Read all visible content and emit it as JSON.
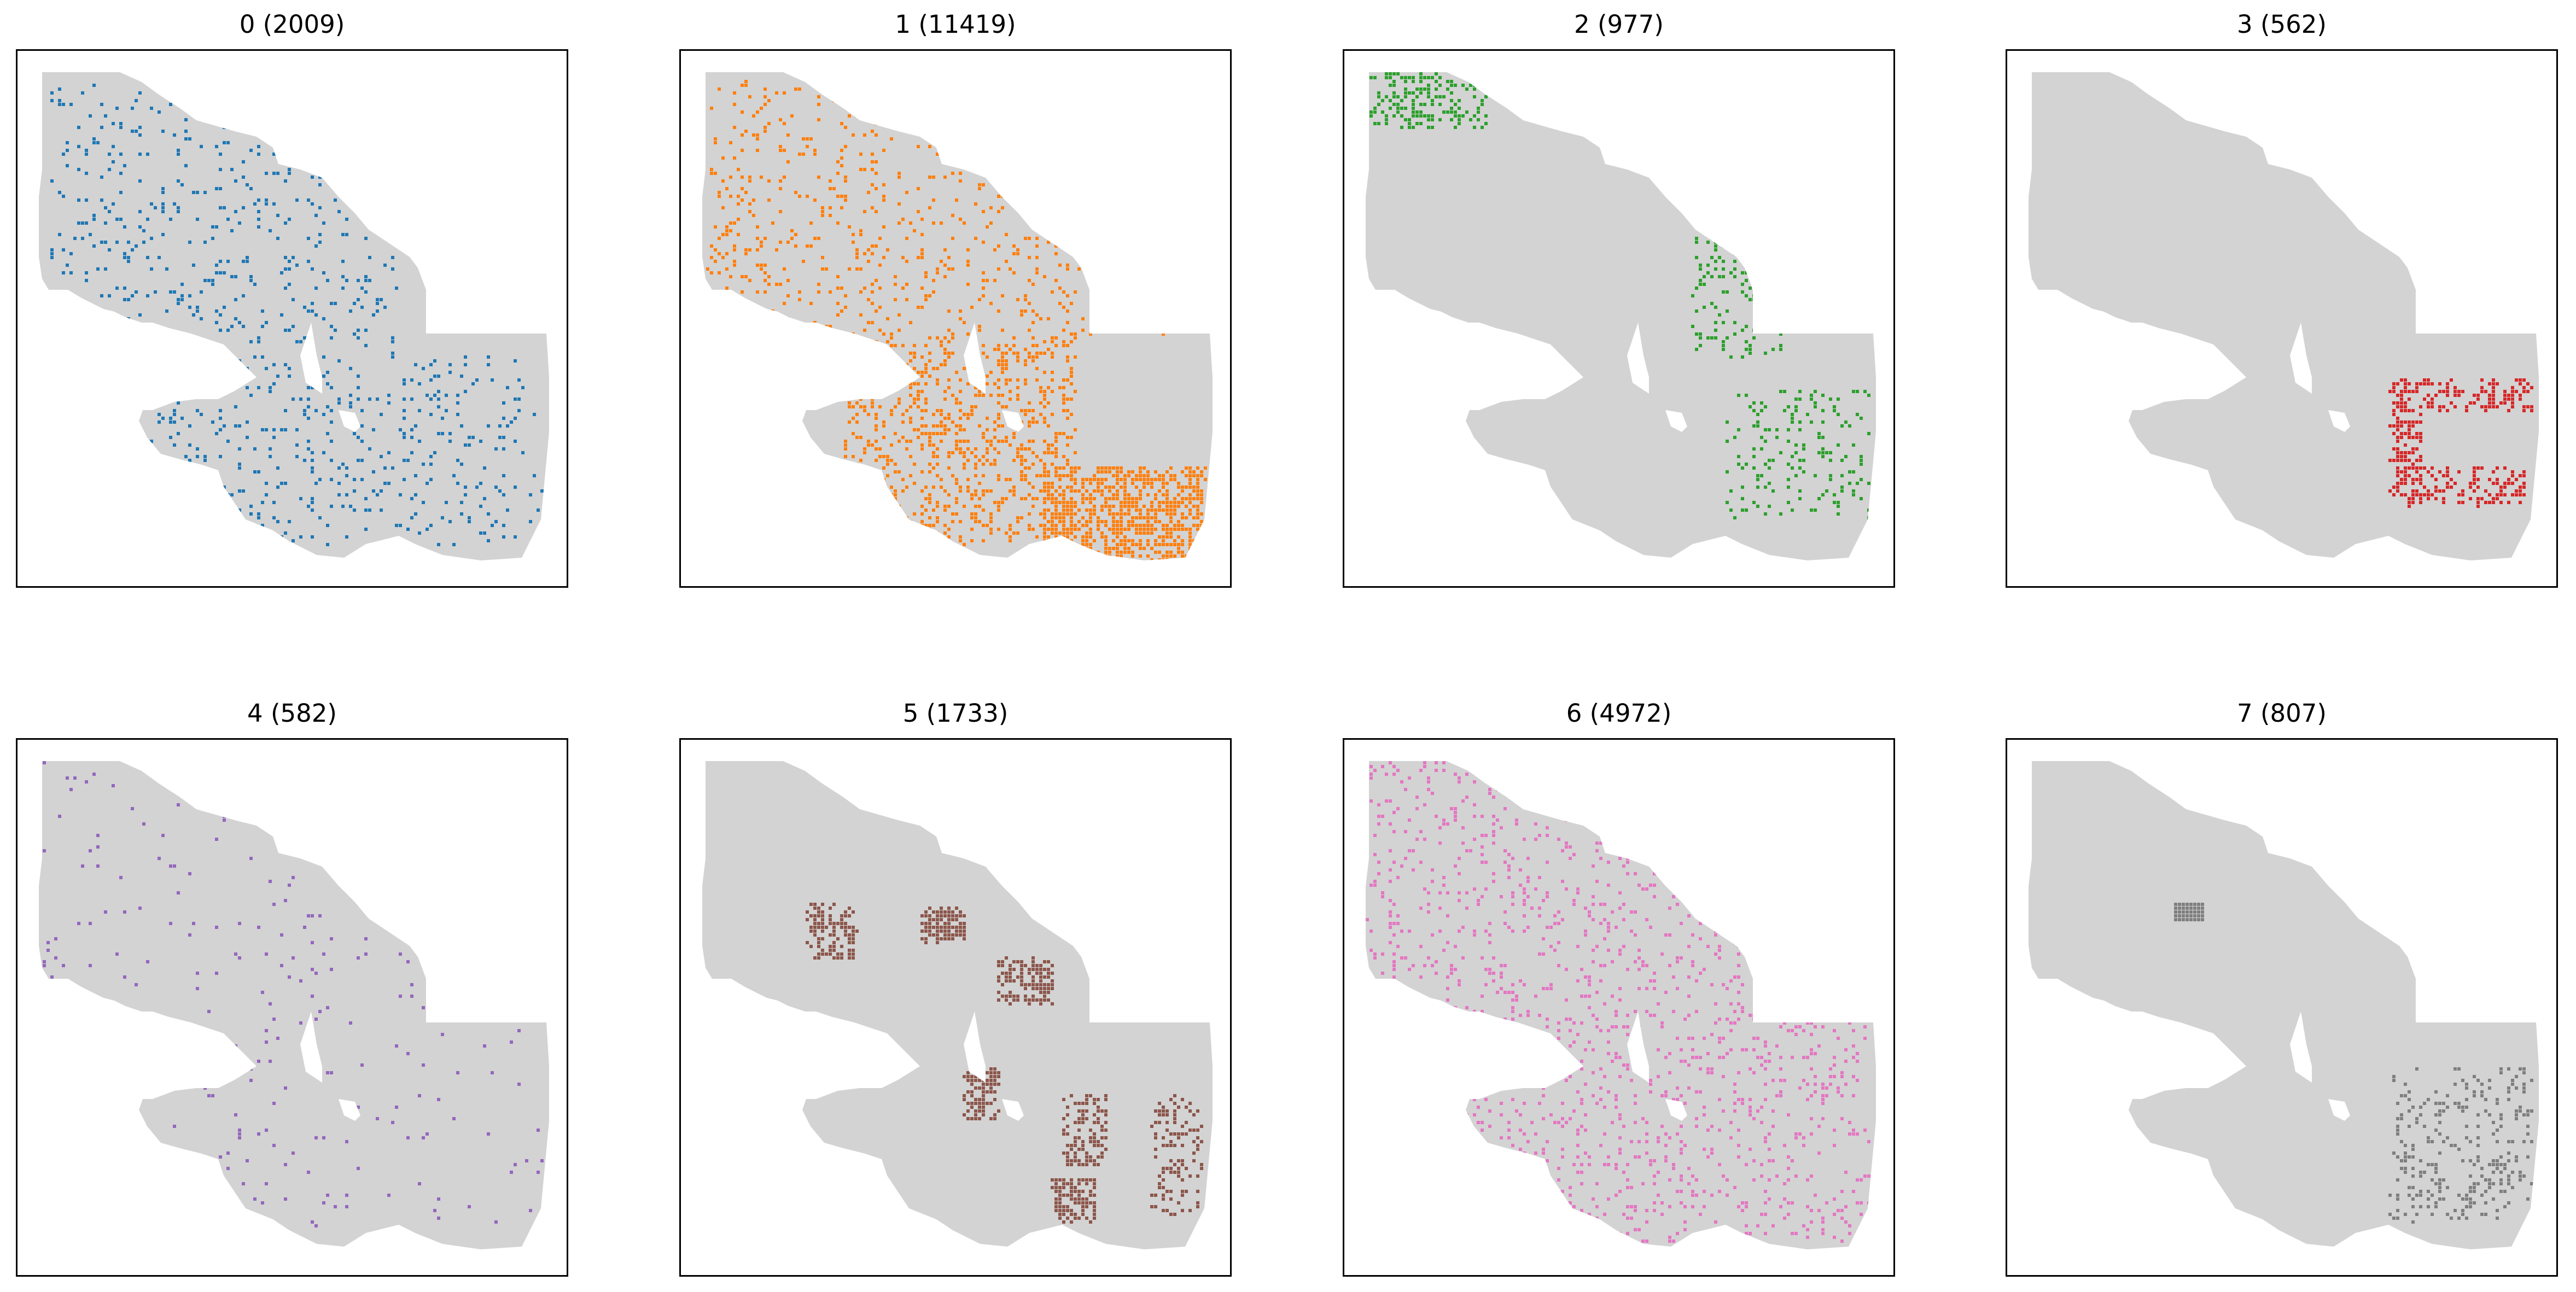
{
  "chart_data": [
    {
      "type": "scatter",
      "title": "0 (2009)",
      "cluster": "0",
      "count": 2009,
      "color": "#1f77b4",
      "background_color": "#d3d3d3",
      "xlabel": "",
      "ylabel": "",
      "ticks": "none",
      "grid": false,
      "legend": "none"
    },
    {
      "type": "scatter",
      "title": "1 (11419)",
      "cluster": "1",
      "count": 11419,
      "color": "#ff7f0e",
      "background_color": "#d3d3d3",
      "xlabel": "",
      "ylabel": "",
      "ticks": "none",
      "grid": false,
      "legend": "none"
    },
    {
      "type": "scatter",
      "title": "2 (977)",
      "cluster": "2",
      "count": 977,
      "color": "#2ca02c",
      "background_color": "#d3d3d3",
      "xlabel": "",
      "ylabel": "",
      "ticks": "none",
      "grid": false,
      "legend": "none"
    },
    {
      "type": "scatter",
      "title": "3 (562)",
      "cluster": "3",
      "count": 562,
      "color": "#d62728",
      "background_color": "#d3d3d3",
      "xlabel": "",
      "ylabel": "",
      "ticks": "none",
      "grid": false,
      "legend": "none"
    },
    {
      "type": "scatter",
      "title": "4 (582)",
      "cluster": "4",
      "count": 582,
      "color": "#9467bd",
      "background_color": "#d3d3d3",
      "xlabel": "",
      "ylabel": "",
      "ticks": "none",
      "grid": false,
      "legend": "none"
    },
    {
      "type": "scatter",
      "title": "5 (1733)",
      "cluster": "5",
      "count": 1733,
      "color": "#8c564b",
      "background_color": "#d3d3d3",
      "xlabel": "",
      "ylabel": "",
      "ticks": "none",
      "grid": false,
      "legend": "none"
    },
    {
      "type": "scatter",
      "title": "6 (4972)",
      "cluster": "6",
      "count": 4972,
      "color": "#e377c2",
      "background_color": "#d3d3d3",
      "xlabel": "",
      "ylabel": "",
      "ticks": "none",
      "grid": false,
      "legend": "none"
    },
    {
      "type": "scatter",
      "title": "7 (807)",
      "cluster": "7",
      "count": 807,
      "color": "#7f7f7f",
      "background_color": "#d3d3d3",
      "xlabel": "",
      "ylabel": "",
      "ticks": "none",
      "grid": false,
      "legend": "none"
    }
  ]
}
